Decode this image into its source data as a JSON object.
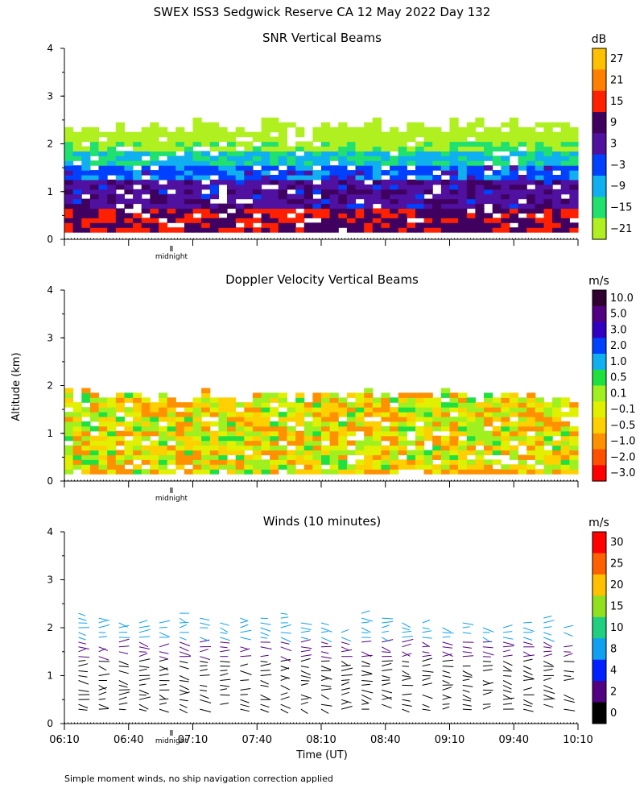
{
  "figure": {
    "title": "SWEX ISS3 Sedgwick Reserve CA  12 May 2022 Day 132",
    "ylabel": "Altitude (km)",
    "xlabel": "Time (UT)",
    "footnote": "Simple moment winds, no ship navigation correction applied",
    "midnight_label": "midnight"
  },
  "chart_data": [
    {
      "type": "heatmap",
      "title": "SNR Vertical Beams",
      "units": "dB",
      "ylim": [
        0,
        4
      ],
      "yticks": [
        "0",
        "1",
        "2",
        "3",
        "4"
      ],
      "colorbar": {
        "labels": [
          "27",
          "21",
          "15",
          "9",
          "3",
          "−3",
          "−9",
          "−15",
          "−21"
        ],
        "colors": [
          "#ffc000",
          "#ff8000",
          "#ff2000",
          "#400060",
          "#5010a0",
          "#0040ff",
          "#10b0f0",
          "#20e070",
          "#b0f020"
        ]
      },
      "layers": [
        {
          "range_km": [
            0.15,
            0.6
          ],
          "value_dB": 10
        },
        {
          "range_km": [
            0.6,
            1.2
          ],
          "value_dB": 4
        },
        {
          "range_km": [
            1.2,
            1.5
          ],
          "value_dB": -3
        },
        {
          "range_km": [
            1.5,
            1.8
          ],
          "value_dB": -10
        },
        {
          "range_km": [
            1.8,
            2.0
          ],
          "value_dB": -17
        },
        {
          "range_km": [
            2.0,
            2.5
          ],
          "value_dB": -21
        }
      ]
    },
    {
      "type": "heatmap",
      "title": "Doppler Velocity Vertical Beams",
      "units": "m/s",
      "ylim": [
        0,
        4
      ],
      "yticks": [
        "0",
        "1",
        "2",
        "3",
        "4"
      ],
      "colorbar": {
        "labels": [
          "10.0",
          "5.0",
          "3.0",
          "2.0",
          "1.0",
          "0.5",
          "0.1",
          "−0.1",
          "−0.5",
          "−1.0",
          "−2.0",
          "−3.0"
        ],
        "colors": [
          "#300030",
          "#500080",
          "#3000c0",
          "#0040ff",
          "#10b0f0",
          "#20e040",
          "#a0f020",
          "#e0f000",
          "#ffd000",
          "#ff9000",
          "#ff5000",
          "#ff0000"
        ]
      },
      "layers": [
        {
          "range_km": [
            0.15,
            1.9
          ],
          "value_ms": -0.3
        }
      ]
    },
    {
      "type": "scatter",
      "title": "Winds (10 minutes)",
      "units": "m/s",
      "ylim": [
        0,
        4
      ],
      "yticks": [
        "0",
        "1",
        "2",
        "3",
        "4"
      ],
      "colorbar": {
        "labels": [
          "30",
          "25",
          "20",
          "15",
          "10",
          "8",
          "4",
          "2",
          "0"
        ],
        "colors": [
          "#ff0000",
          "#ff6000",
          "#ffc000",
          "#90e020",
          "#20d080",
          "#10a0f0",
          "#0020ff",
          "#500080",
          "#000000"
        ]
      },
      "x": [
        "06:10",
        "06:40",
        "07:10",
        "07:40",
        "08:10",
        "08:40",
        "09:10",
        "09:40",
        "10:10"
      ],
      "profile_tops_km": [
        2.4,
        2.3,
        2.2,
        2.2,
        2.2,
        2.4,
        2.3,
        2.2,
        2.3,
        2.3,
        2.4,
        2.3,
        2.2,
        2.1,
        2.4,
        2.3,
        2.2,
        2.2,
        2.1,
        2.2,
        2.1,
        2.1,
        2.2,
        2.3,
        2.1
      ]
    }
  ]
}
